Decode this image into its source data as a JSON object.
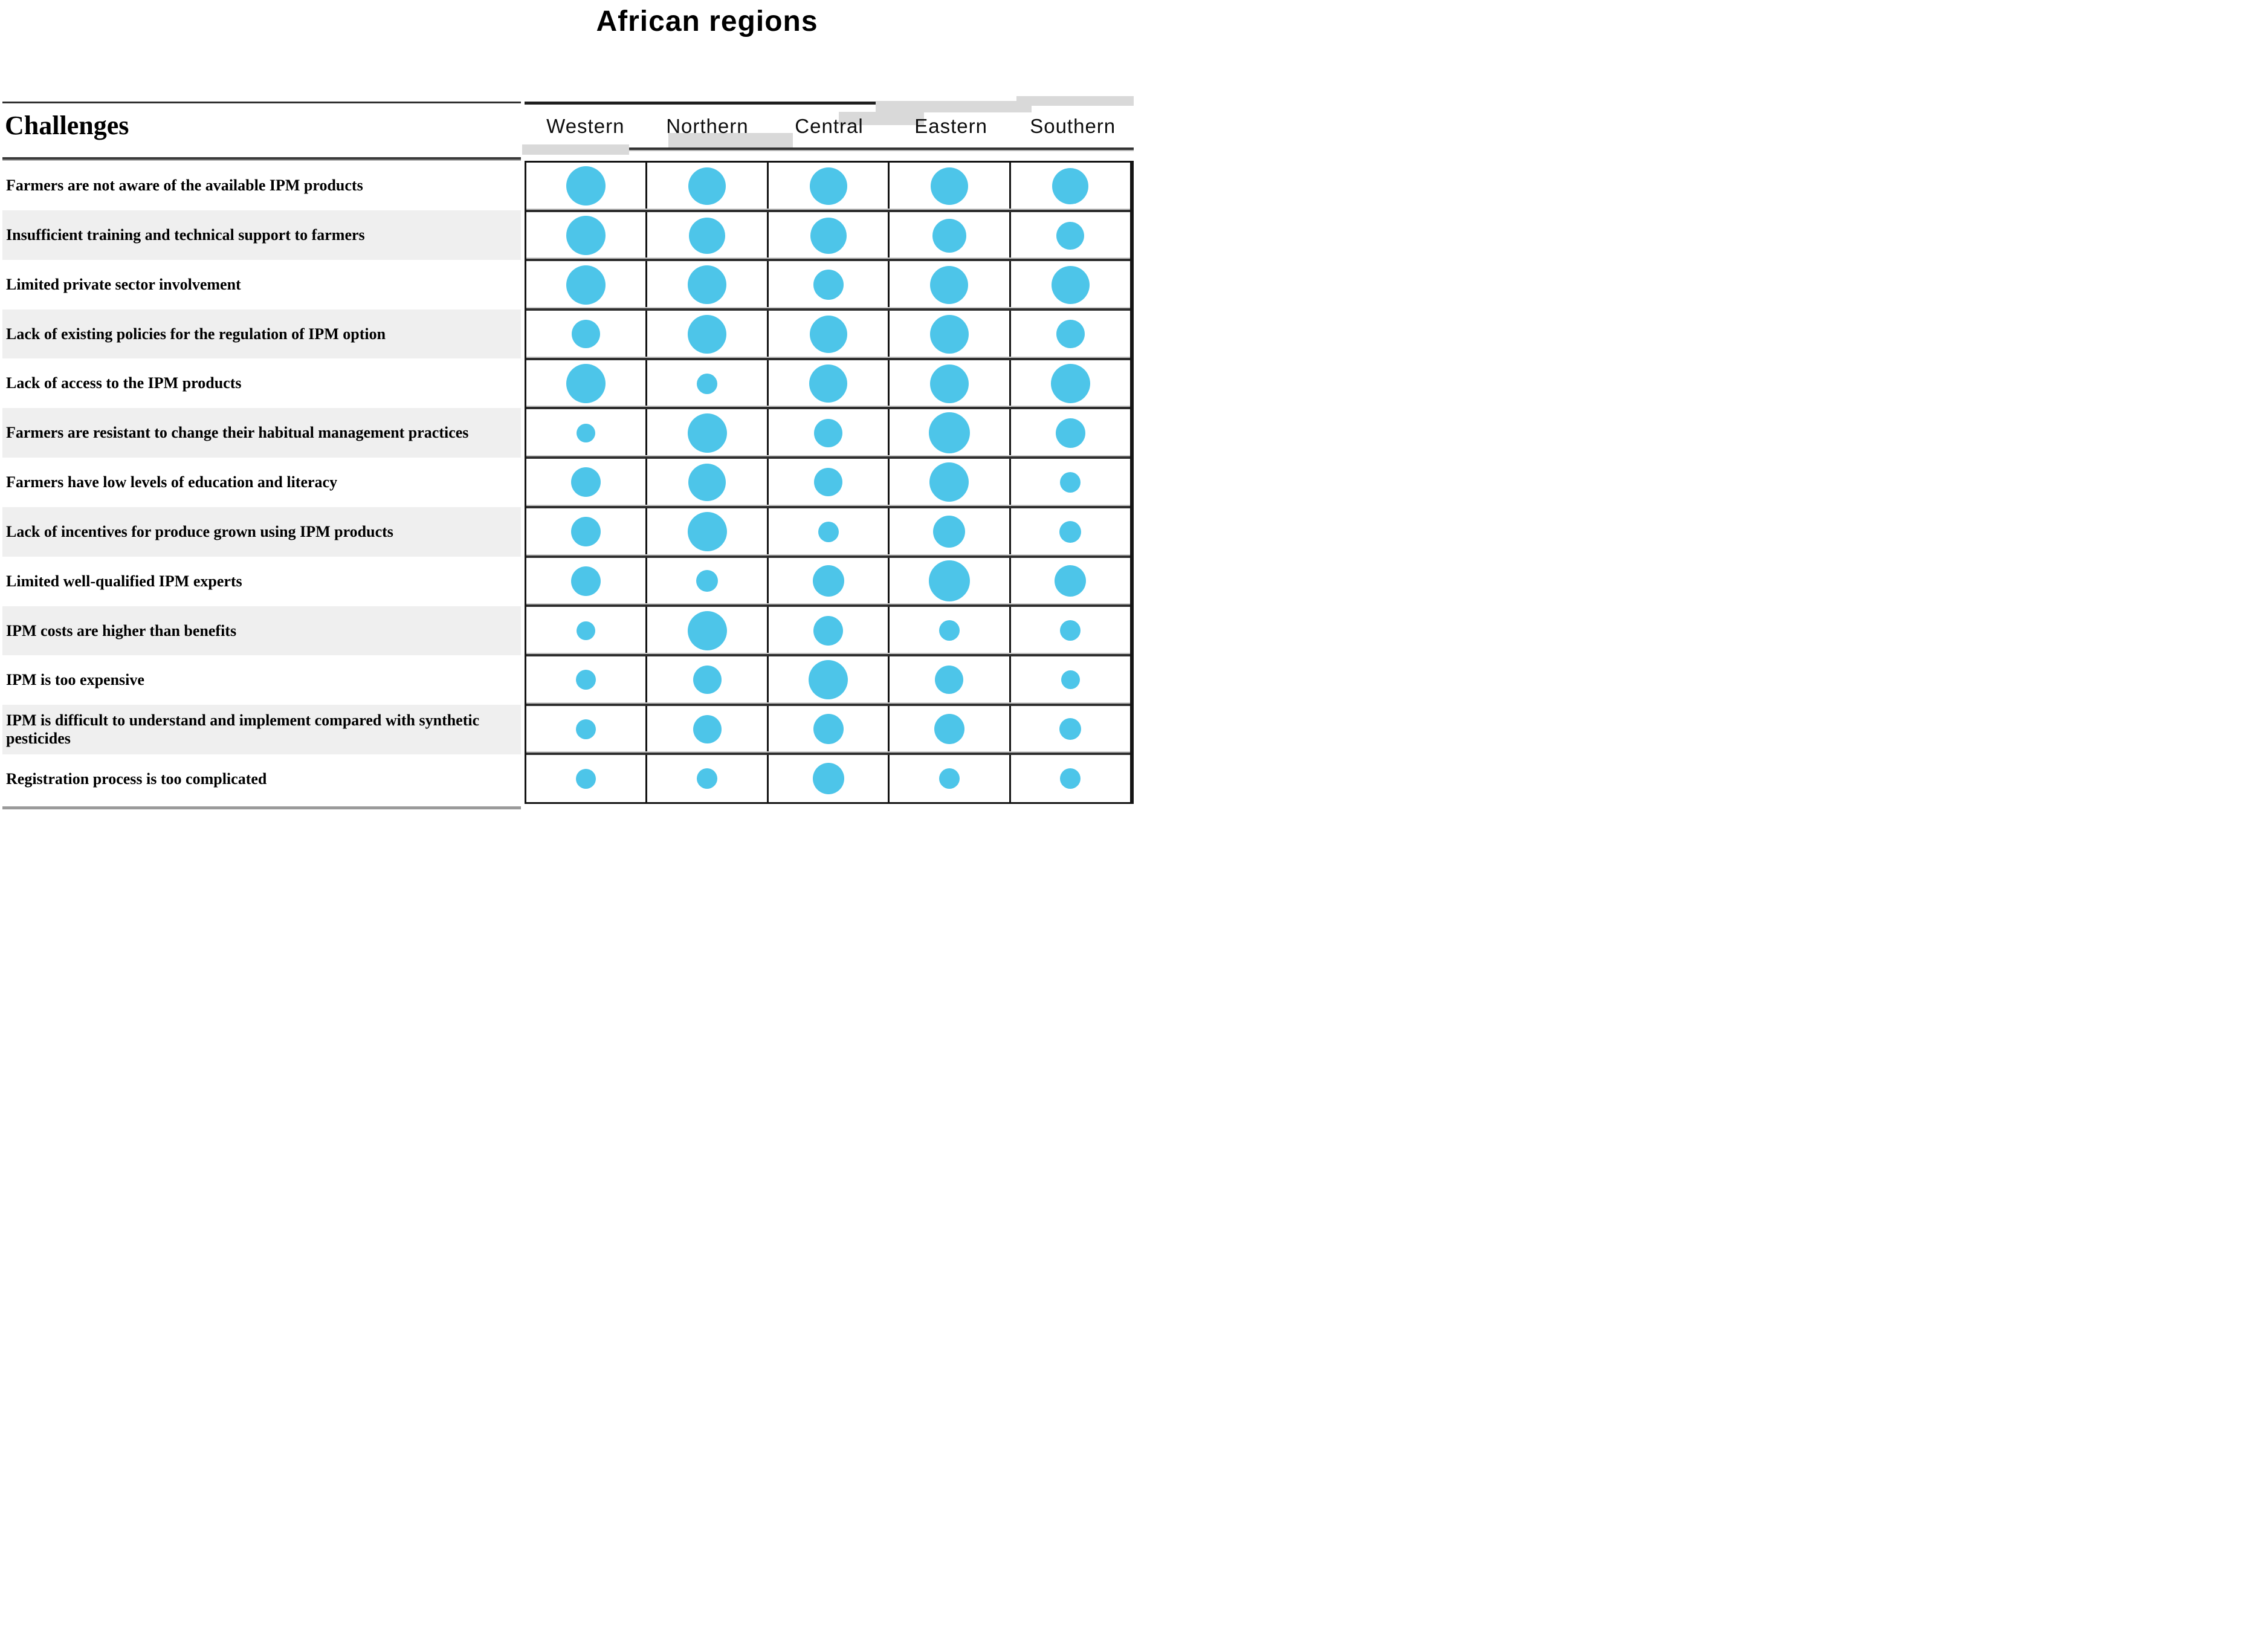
{
  "chart_data": {
    "type": "bubble",
    "title": "African regions",
    "row_axis_label": "Challenges",
    "columns": [
      "Western",
      "Northern",
      "Central",
      "Eastern",
      "Southern"
    ],
    "rows": [
      {
        "label": "Farmers are not aware of the available IPM products",
        "values": [
          96,
          91,
          91,
          91,
          88
        ]
      },
      {
        "label": "Insufficient training and technical support to farmers",
        "values": [
          96,
          88,
          88,
          82,
          68
        ]
      },
      {
        "label": "Limited private sector involvement",
        "values": [
          96,
          94,
          74,
          93,
          93
        ]
      },
      {
        "label": "Lack of existing policies for the regulation of IPM option",
        "values": [
          69,
          94,
          91,
          94,
          69
        ]
      },
      {
        "label": "Lack of access to the IPM products",
        "values": [
          96,
          50,
          93,
          94,
          96
        ]
      },
      {
        "label": "Farmers are resistant to change their habitual management practices",
        "values": [
          46,
          96,
          69,
          100,
          72
        ]
      },
      {
        "label": "Farmers have low levels of education and literacy",
        "values": [
          72,
          91,
          69,
          96,
          50
        ]
      },
      {
        "label": "Lack of incentives for produce grown using IPM products",
        "values": [
          72,
          96,
          50,
          78,
          53
        ]
      },
      {
        "label": "Limited well-qualified IPM experts",
        "values": [
          72,
          53,
          76,
          100,
          76
        ]
      },
      {
        "label": "IPM costs are higher than benefits",
        "values": [
          46,
          96,
          72,
          50,
          50
        ]
      },
      {
        "label": "IPM is too expensive",
        "values": [
          49,
          69,
          96,
          69,
          46
        ]
      },
      {
        "label": "IPM is difficult to understand and implement compared with synthetic pesticides",
        "values": [
          49,
          69,
          74,
          74,
          53
        ]
      },
      {
        "label": "Registration process is too complicated",
        "values": [
          49,
          50,
          76,
          50,
          50
        ]
      }
    ],
    "value_meaning": "Relative bubble size, estimated as percent of the largest bubble; no numeric scale is shown in the figure",
    "bubble_color": "#4dc5e9",
    "legend": "none",
    "grid": "on"
  }
}
